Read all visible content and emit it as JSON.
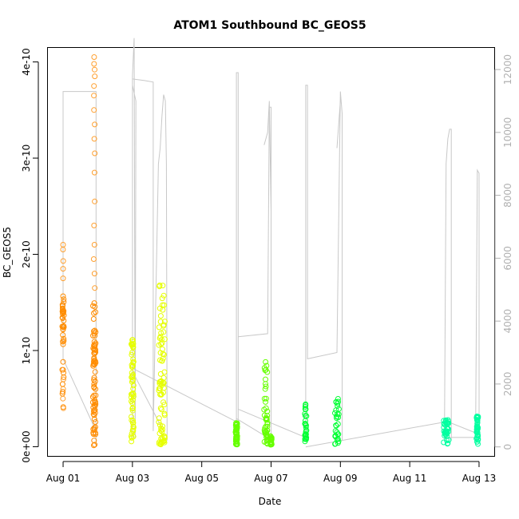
{
  "chart_data": {
    "type": "scatter",
    "title": "ATOM1 Southbound BC_GEOS5",
    "xlabel": "Date",
    "ylabel": "BC_GEOS5",
    "x_ticks": [
      "Aug 01",
      "Aug 03",
      "Aug 05",
      "Aug 07",
      "Aug 09",
      "Aug 11",
      "Aug 13"
    ],
    "x_tick_days": [
      1,
      3,
      5,
      7,
      9,
      11,
      13
    ],
    "xlim_days": [
      0.55,
      13.45
    ],
    "y_ticks": [
      "0e+00",
      "1e-10",
      "2e-10",
      "3e-10",
      "4e-10"
    ],
    "y_tick_values": [
      0,
      1e-10,
      2e-10,
      3e-10,
      4e-10
    ],
    "ylim": [
      -1e-11,
      4.15e-10
    ],
    "y2_ticks": [
      "0",
      "2000",
      "4000",
      "6000",
      "8000",
      "10000",
      "12000"
    ],
    "y2_tick_values": [
      0,
      2000,
      4000,
      6000,
      8000,
      10000,
      12000
    ],
    "y2lim": [
      -300,
      12700
    ],
    "grid": false,
    "legend": "none",
    "colors": {
      "axis": "#000000",
      "secondary_axis": "#b0b0b0",
      "altitude_line": "#c8c8c8",
      "orange": "#ff8c00",
      "light_orange": "#ffa030",
      "yellow": "#e6ff00",
      "green": "#66ff00",
      "bright_green": "#00ff33",
      "cyan_green": "#00ffa0"
    },
    "point_clusters": [
      {
        "day": 1.0,
        "width": 0.05,
        "color": "#ff8c00",
        "y_range": [
          4e-11,
          1.58e-10
        ],
        "dense_range": [
          1e-10,
          1.58e-10
        ],
        "outliers": [
          1.75e-10,
          1.85e-10,
          1.93e-10,
          2.05e-10,
          2.1e-10,
          4e-11,
          5e-11,
          6e-11,
          7e-11,
          8e-11
        ]
      },
      {
        "day": 1.9,
        "width": 0.08,
        "color": "#ff8c00",
        "y_range": [
          0.0,
          1.5e-10
        ],
        "dense_range": [
          0.0,
          1.5e-10
        ],
        "outliers": [
          1.65e-10,
          1.8e-10,
          1.95e-10,
          2.1e-10,
          2.3e-10,
          2.55e-10,
          2.85e-10,
          3.05e-10,
          3.2e-10,
          3.35e-10,
          3.5e-10,
          3.65e-10,
          3.75e-10,
          3.85e-10,
          3.92e-10,
          3.98e-10,
          4.05e-10
        ]
      },
      {
        "day": 3.0,
        "width": 0.07,
        "color": "#e6ff00",
        "y_range": [
          5e-12,
          1.12e-10
        ],
        "dense_range": [
          5e-12,
          1.05e-10
        ],
        "outliers": []
      },
      {
        "day": 3.85,
        "width": 0.18,
        "color": "#e6ff00",
        "y_range": [
          2e-12,
          1.74e-10
        ],
        "dense_range": [
          5e-12,
          1.35e-10
        ],
        "outliers": []
      },
      {
        "day": 6.0,
        "width": 0.05,
        "color": "#66ff00",
        "y_range": [
          2e-12,
          2.5e-11
        ],
        "dense_range": [
          3e-12,
          2e-11
        ],
        "outliers": []
      },
      {
        "day": 6.85,
        "width": 0.1,
        "color": "#66ff00",
        "y_range": [
          2e-12,
          9e-11
        ],
        "dense_range": [
          2e-12,
          3.8e-11
        ],
        "outliers": [
          5e-11,
          6e-11,
          7e-11,
          8e-11,
          8.8e-11
        ]
      },
      {
        "day": 7.0,
        "width": 0.04,
        "color": "#66ff00",
        "y_range": [
          2e-12,
          1.2e-11
        ],
        "dense_range": [
          2e-12,
          1.2e-11
        ],
        "outliers": []
      },
      {
        "day": 8.0,
        "width": 0.05,
        "color": "#00ff33",
        "y_range": [
          5e-12,
          4.5e-11
        ],
        "dense_range": [
          5e-12,
          4.5e-11
        ],
        "outliers": []
      },
      {
        "day": 8.9,
        "width": 0.12,
        "color": "#00ff33",
        "y_range": [
          2e-12,
          5e-11
        ],
        "dense_range": [
          2e-12,
          5e-11
        ],
        "outliers": []
      },
      {
        "day": 12.05,
        "width": 0.15,
        "color": "#00ffa0",
        "y_range": [
          2e-12,
          2.8e-11
        ],
        "dense_range": [
          2e-12,
          2.5e-11
        ],
        "outliers": []
      },
      {
        "day": 12.95,
        "width": 0.05,
        "color": "#00ffa0",
        "y_range": [
          2e-12,
          3.2e-11
        ],
        "dense_range": [
          2e-12,
          3e-11
        ],
        "outliers": []
      }
    ],
    "altitude_series": {
      "name": "",
      "axis": "right",
      "segments": [
        {
          "x": [
            1.0,
            1.0,
            1.95,
            1.95,
            1.95
          ],
          "y": [
            2800,
            11300,
            11300,
            8500,
            0
          ]
        },
        {
          "x": [
            1.0,
            1.95
          ],
          "y": [
            2800,
            500
          ]
        },
        {
          "x": [
            3.0,
            3.0,
            3.05,
            3.08,
            3.1,
            3.0
          ],
          "y": [
            300,
            11800,
            13000,
            300,
            11000,
            11500
          ]
        },
        {
          "x": [
            3.0,
            3.35,
            3.6,
            3.6,
            3.75,
            3.8,
            3.85,
            3.9,
            3.95,
            3.98,
            4.0
          ],
          "y": [
            11700,
            11650,
            11600,
            500,
            9000,
            9500,
            10500,
            11200,
            11000,
            9000,
            200
          ]
        },
        {
          "x": [
            3.0,
            3.9
          ],
          "y": [
            2400,
            500
          ]
        },
        {
          "x": [
            3.0,
            6.0
          ],
          "y": [
            2500,
            800
          ]
        },
        {
          "x": [
            6.0,
            6.0,
            6.05,
            6.05,
            6.05,
            6.05,
            6.0
          ],
          "y": [
            300,
            11900,
            11900,
            3500,
            3500,
            200,
            200
          ]
        },
        {
          "x": [
            6.05,
            6.9,
            6.95,
            7.0,
            7.0
          ],
          "y": [
            3500,
            3600,
            10800,
            10800,
            200
          ]
        },
        {
          "x": [
            6.8,
            6.85,
            6.9,
            6.95,
            7.0
          ],
          "y": [
            9600,
            9800,
            10000,
            11000,
            7500
          ]
        },
        {
          "x": [
            6.0,
            6.9
          ],
          "y": [
            900,
            300
          ]
        },
        {
          "x": [
            6.05,
            8.0
          ],
          "y": [
            1200,
            300
          ]
        },
        {
          "x": [
            8.0,
            8.0,
            8.05,
            8.05,
            8.9,
            9.0,
            9.05,
            9.05
          ],
          "y": [
            200,
            11500,
            11500,
            2800,
            3000,
            11300,
            10600,
            200
          ]
        },
        {
          "x": [
            8.9,
            9.0
          ],
          "y": [
            9500,
            11000
          ]
        },
        {
          "x": [
            8.0,
            12.05
          ],
          "y": [
            0,
            800
          ]
        },
        {
          "x": [
            12.0,
            12.05,
            12.1,
            12.15,
            12.2,
            12.2
          ],
          "y": [
            200,
            9000,
            9800,
            10100,
            10100,
            200
          ]
        },
        {
          "x": [
            12.9,
            12.95,
            13.0,
            13.0
          ],
          "y": [
            200,
            8800,
            8700,
            200
          ]
        },
        {
          "x": [
            12.1,
            13.0
          ],
          "y": [
            800,
            400
          ]
        },
        {
          "x": [
            12.0,
            12.95
          ],
          "y": [
            300,
            300
          ]
        }
      ]
    }
  }
}
